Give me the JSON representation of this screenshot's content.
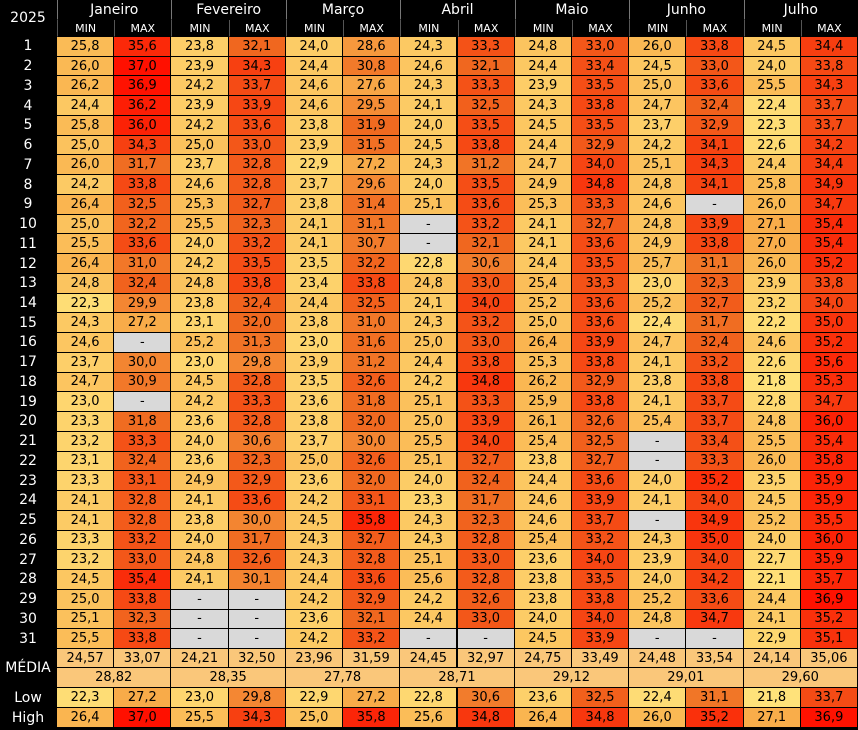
{
  "header": {
    "year": "2025",
    "months": [
      "Janeiro",
      "Fevereiro",
      "Março",
      "Abril",
      "Maio",
      "Junho",
      "Julho"
    ],
    "subheaders": [
      "MIN",
      "MAX"
    ]
  },
  "rows": [
    {
      "day": "1",
      "cells": [
        "25,8",
        "35,6",
        "23,8",
        "32,1",
        "24,0",
        "28,6",
        "24,3",
        "33,3",
        "24,8",
        "33,0",
        "26,0",
        "33,8",
        "24,5",
        "34,4"
      ]
    },
    {
      "day": "2",
      "cells": [
        "26,0",
        "37,0",
        "23,9",
        "34,3",
        "24,4",
        "30,8",
        "24,6",
        "32,1",
        "24,4",
        "33,4",
        "24,5",
        "33,0",
        "24,0",
        "33,8"
      ]
    },
    {
      "day": "3",
      "cells": [
        "26,2",
        "36,9",
        "24,2",
        "33,7",
        "24,6",
        "27,6",
        "24,3",
        "33,3",
        "23,9",
        "33,5",
        "25,0",
        "33,6",
        "25,5",
        "34,3"
      ]
    },
    {
      "day": "4",
      "cells": [
        "24,4",
        "36,2",
        "23,9",
        "33,9",
        "24,6",
        "29,5",
        "24,1",
        "32,5",
        "24,3",
        "33,8",
        "24,7",
        "32,4",
        "22,4",
        "33,7"
      ]
    },
    {
      "day": "5",
      "cells": [
        "25,8",
        "36,0",
        "24,2",
        "33,6",
        "23,8",
        "31,9",
        "24,0",
        "33,5",
        "24,5",
        "33,5",
        "23,7",
        "32,9",
        "22,3",
        "33,7"
      ]
    },
    {
      "day": "6",
      "cells": [
        "25,0",
        "34,3",
        "25,0",
        "33,0",
        "23,9",
        "31,5",
        "24,5",
        "33,8",
        "24,4",
        "32,9",
        "24,2",
        "34,1",
        "22,6",
        "34,2"
      ]
    },
    {
      "day": "7",
      "cells": [
        "26,0",
        "31,7",
        "23,7",
        "32,8",
        "22,9",
        "27,2",
        "24,3",
        "31,2",
        "24,7",
        "34,0",
        "25,1",
        "34,3",
        "24,4",
        "34,4"
      ]
    },
    {
      "day": "8",
      "cells": [
        "24,2",
        "33,8",
        "24,6",
        "32,8",
        "23,7",
        "29,6",
        "24,0",
        "33,5",
        "24,9",
        "34,8",
        "24,8",
        "34,1",
        "25,8",
        "34,9"
      ]
    },
    {
      "day": "9",
      "cells": [
        "26,4",
        "32,5",
        "25,3",
        "32,7",
        "23,8",
        "31,4",
        "25,1",
        "33,6",
        "25,3",
        "33,3",
        "24,6",
        "-",
        "26,0",
        "34,7"
      ]
    },
    {
      "day": "10",
      "cells": [
        "25,0",
        "32,2",
        "25,5",
        "32,3",
        "24,1",
        "31,1",
        "-",
        "33,2",
        "24,1",
        "32,7",
        "24,8",
        "33,9",
        "27,1",
        "35,4"
      ]
    },
    {
      "day": "11",
      "cells": [
        "25,5",
        "33,6",
        "24,0",
        "33,2",
        "24,1",
        "30,7",
        "-",
        "32,1",
        "24,1",
        "33,6",
        "24,9",
        "33,8",
        "27,0",
        "35,4"
      ]
    },
    {
      "day": "12",
      "cells": [
        "26,4",
        "31,0",
        "24,2",
        "33,5",
        "23,5",
        "32,2",
        "22,8",
        "30,6",
        "24,4",
        "33,5",
        "25,7",
        "31,1",
        "26,0",
        "35,2"
      ]
    },
    {
      "day": "13",
      "cells": [
        "24,8",
        "32,4",
        "24,8",
        "33,8",
        "23,4",
        "33,8",
        "24,8",
        "33,0",
        "25,4",
        "33,3",
        "23,0",
        "32,3",
        "23,9",
        "33,8"
      ]
    },
    {
      "day": "14",
      "cells": [
        "22,3",
        "29,9",
        "23,8",
        "32,4",
        "24,4",
        "32,5",
        "24,1",
        "34,0",
        "25,2",
        "33,6",
        "25,2",
        "32,7",
        "23,2",
        "34,0"
      ]
    },
    {
      "day": "15",
      "cells": [
        "24,3",
        "27,2",
        "23,1",
        "32,0",
        "23,8",
        "31,0",
        "24,3",
        "33,2",
        "25,0",
        "33,6",
        "22,4",
        "31,7",
        "22,2",
        "35,0"
      ]
    },
    {
      "day": "16",
      "cells": [
        "24,6",
        "-",
        "25,2",
        "31,3",
        "23,0",
        "31,6",
        "25,0",
        "33,0",
        "26,4",
        "33,9",
        "24,7",
        "32,4",
        "24,6",
        "35,2"
      ]
    },
    {
      "day": "17",
      "cells": [
        "23,7",
        "30,0",
        "23,0",
        "29,8",
        "23,9",
        "31,2",
        "24,4",
        "33,8",
        "25,3",
        "33,8",
        "24,1",
        "33,2",
        "22,6",
        "35,6"
      ]
    },
    {
      "day": "18",
      "cells": [
        "24,7",
        "30,9",
        "24,5",
        "32,8",
        "23,5",
        "32,6",
        "24,2",
        "34,8",
        "26,2",
        "32,9",
        "23,8",
        "33,8",
        "21,8",
        "35,3"
      ]
    },
    {
      "day": "19",
      "cells": [
        "23,0",
        "-",
        "24,2",
        "33,3",
        "23,6",
        "31,8",
        "25,1",
        "33,3",
        "25,9",
        "33,8",
        "24,1",
        "33,7",
        "22,8",
        "34,7"
      ]
    },
    {
      "day": "20",
      "cells": [
        "23,3",
        "31,8",
        "23,6",
        "32,8",
        "23,8",
        "32,0",
        "25,0",
        "33,9",
        "26,1",
        "32,6",
        "25,4",
        "33,7",
        "24,8",
        "36,0"
      ]
    },
    {
      "day": "21",
      "cells": [
        "23,2",
        "33,3",
        "24,0",
        "30,6",
        "23,7",
        "30,0",
        "25,5",
        "34,0",
        "25,4",
        "32,5",
        "-",
        "33,4",
        "25,5",
        "35,4"
      ]
    },
    {
      "day": "22",
      "cells": [
        "23,1",
        "32,4",
        "23,6",
        "32,3",
        "25,0",
        "32,6",
        "25,1",
        "32,7",
        "23,8",
        "32,7",
        "-",
        "33,3",
        "26,0",
        "35,8"
      ]
    },
    {
      "day": "23",
      "cells": [
        "23,3",
        "33,1",
        "24,9",
        "32,9",
        "23,6",
        "32,0",
        "24,0",
        "32,4",
        "24,4",
        "33,6",
        "24,0",
        "35,2",
        "23,5",
        "35,9"
      ]
    },
    {
      "day": "24",
      "cells": [
        "24,1",
        "32,8",
        "24,1",
        "33,6",
        "24,2",
        "33,1",
        "23,3",
        "31,7",
        "24,6",
        "33,9",
        "24,1",
        "34,0",
        "24,5",
        "35,9"
      ]
    },
    {
      "day": "25",
      "cells": [
        "24,1",
        "32,8",
        "23,8",
        "30,0",
        "24,5",
        "35,8",
        "24,3",
        "32,3",
        "24,6",
        "33,7",
        "-",
        "34,9",
        "25,2",
        "35,5"
      ]
    },
    {
      "day": "26",
      "cells": [
        "23,3",
        "33,2",
        "24,0",
        "31,7",
        "24,3",
        "32,7",
        "24,3",
        "32,8",
        "25,4",
        "33,2",
        "24,3",
        "35,0",
        "24,0",
        "36,0"
      ]
    },
    {
      "day": "27",
      "cells": [
        "23,2",
        "33,0",
        "24,8",
        "32,6",
        "24,3",
        "32,8",
        "25,1",
        "33,0",
        "23,6",
        "34,0",
        "23,9",
        "34,0",
        "22,7",
        "35,9"
      ]
    },
    {
      "day": "28",
      "cells": [
        "24,5",
        "35,4",
        "24,1",
        "30,1",
        "24,4",
        "33,6",
        "25,6",
        "32,8",
        "23,8",
        "33,5",
        "24,0",
        "34,2",
        "22,1",
        "35,7"
      ]
    },
    {
      "day": "29",
      "cells": [
        "25,0",
        "33,8",
        "-",
        "-",
        "24,2",
        "32,9",
        "24,2",
        "32,6",
        "23,8",
        "33,8",
        "25,2",
        "33,6",
        "24,4",
        "36,9"
      ]
    },
    {
      "day": "30",
      "cells": [
        "25,1",
        "32,3",
        "-",
        "-",
        "23,6",
        "32,1",
        "24,4",
        "33,0",
        "24,0",
        "34,0",
        "24,8",
        "34,7",
        "24,1",
        "35,2"
      ]
    },
    {
      "day": "31",
      "cells": [
        "25,5",
        "33,8",
        "-",
        "-",
        "24,2",
        "33,2",
        "-",
        "-",
        "24,5",
        "33,9",
        "-",
        "-",
        "22,9",
        "35,1"
      ]
    }
  ],
  "media": {
    "label": "MÉDIA",
    "values": [
      "24,57",
      "33,07",
      "24,21",
      "32,50",
      "23,96",
      "31,59",
      "24,45",
      "32,97",
      "24,75",
      "33,49",
      "24,48",
      "33,54",
      "24,14",
      "35,06"
    ],
    "combined": [
      "28,82",
      "28,35",
      "27,78",
      "28,71",
      "29,12",
      "29,01",
      "29,60"
    ]
  },
  "low": {
    "label": "Low",
    "values": [
      "22,3",
      "27,2",
      "23,0",
      "29,8",
      "22,9",
      "27,2",
      "22,8",
      "30,6",
      "23,6",
      "32,5",
      "22,4",
      "31,1",
      "21,8",
      "33,7"
    ]
  },
  "high": {
    "label": "High",
    "values": [
      "26,4",
      "37,0",
      "25,5",
      "34,3",
      "25,0",
      "35,8",
      "25,6",
      "34,8",
      "26,4",
      "34,8",
      "26,0",
      "35,2",
      "27,1",
      "36,9"
    ]
  }
}
